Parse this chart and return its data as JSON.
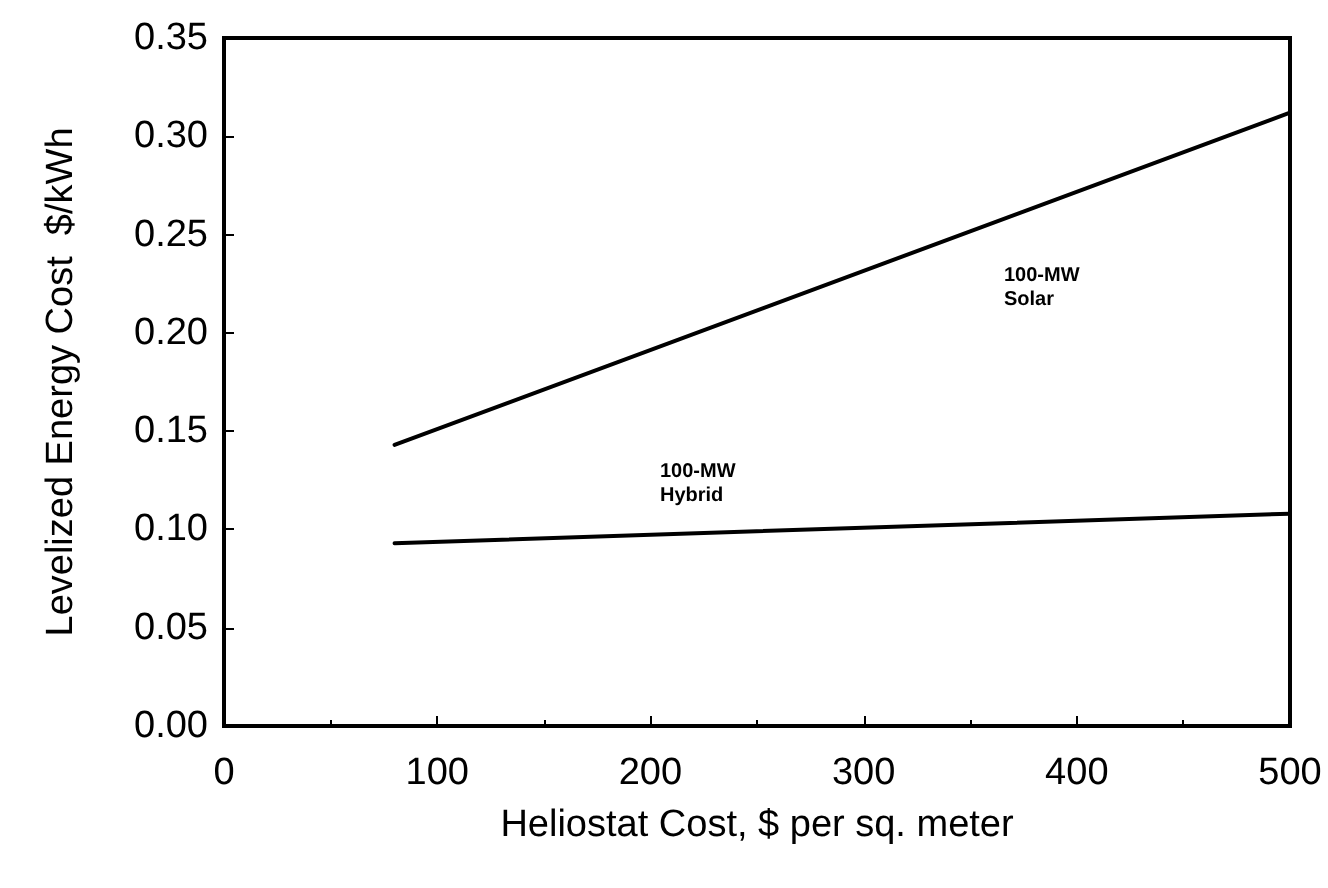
{
  "chart_data": {
    "type": "line",
    "xlabel": "Heliostat Cost, $ per sq. meter",
    "ylabel": "Levelized Energy Cost  $/kWh",
    "series": [
      {
        "color": "#000000",
        "values": [
          0.143,
          0.312
        ]
      },
      {
        "color": "#000000",
        "values": [
          0.093,
          0.108
        ]
      }
    ],
    "annotations": [
      "100-MW\nSolar",
      "100-MW\nHybrid"
    ],
    "x": [
      80,
      500
    ],
    "xlim": [
      0,
      500
    ],
    "xticks": [
      0,
      100,
      200,
      300,
      400,
      500
    ],
    "ylim": [
      0,
      0.35
    ],
    "yticks": [
      {
        "value": 0,
        "label": "0.00"
      },
      0.05,
      {
        "value": 0.1,
        "label": "0.10"
      },
      0.15,
      {
        "value": 0.2,
        "label": "0.20"
      },
      0.25,
      {
        "value": 0.3,
        "label": "0.30"
      },
      0.35
    ],
    "grid": false,
    "marker": "none",
    "line_style": "solid"
  }
}
